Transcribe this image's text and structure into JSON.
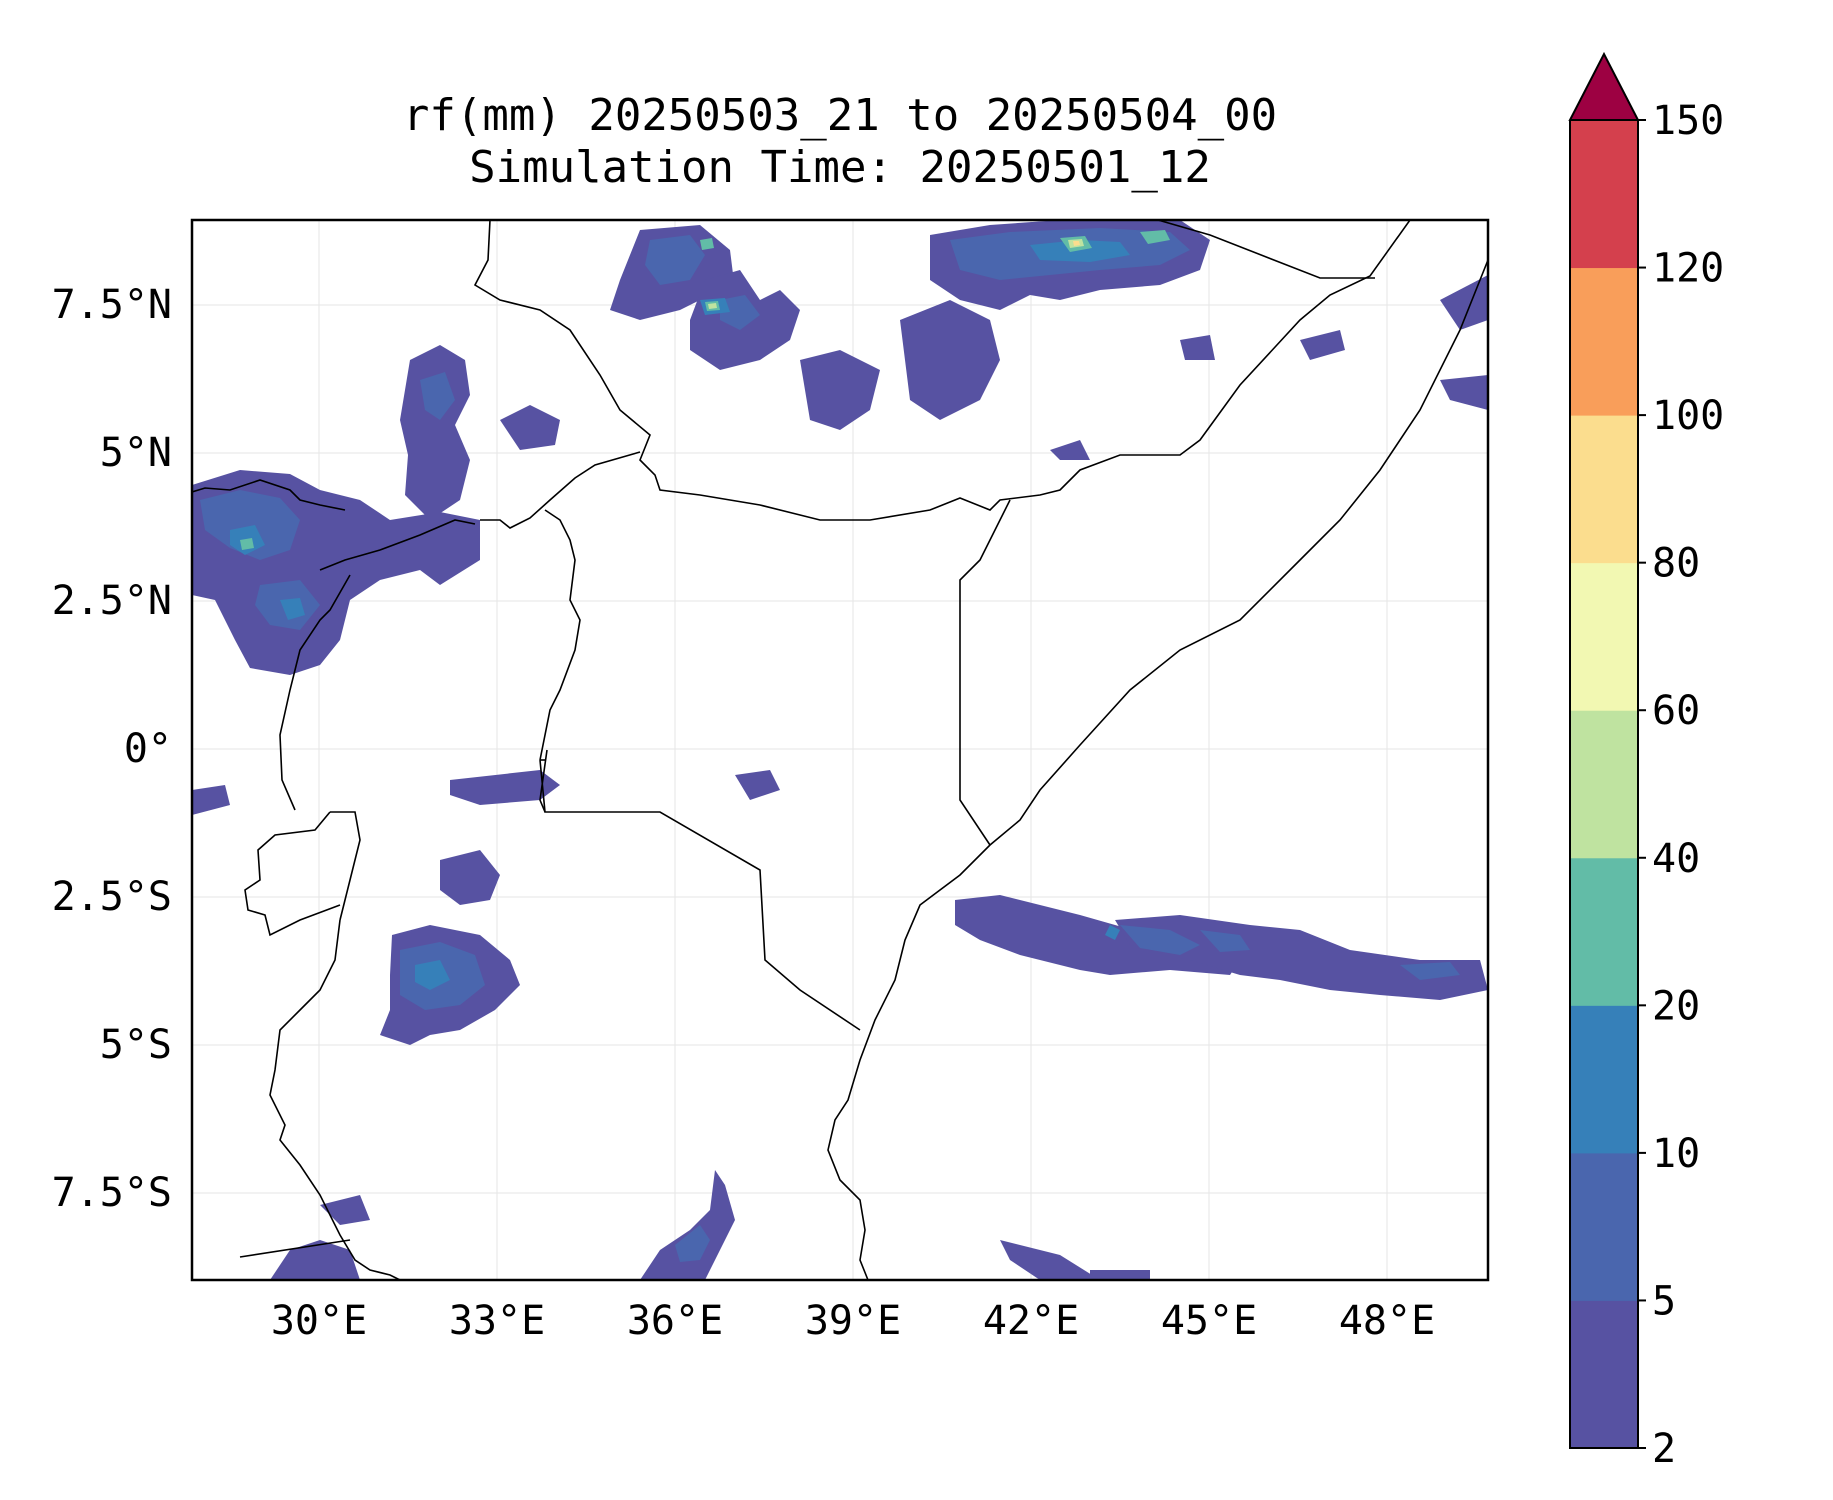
{
  "title": {
    "line1": "rf(mm) 20250503_21 to 20250504_00",
    "line2": "Simulation Time: 20250501_12"
  },
  "map": {
    "x_ticks": [
      "30°E",
      "33°E",
      "36°E",
      "39°E",
      "42°E",
      "45°E",
      "48°E"
    ],
    "y_ticks": [
      "7.5°N",
      "5°N",
      "2.5°N",
      "0°",
      "2.5°S",
      "5°S",
      "7.5°S"
    ],
    "extent": {
      "lon": [
        28,
        50
      ],
      "lat": [
        -8.9,
        9
      ]
    },
    "gridlines": true
  },
  "colorbar": {
    "levels": [
      "2",
      "5",
      "10",
      "20",
      "40",
      "60",
      "80",
      "100",
      "120",
      "150"
    ],
    "colors": [
      "#5752a2",
      "#4a66ae",
      "#3680b9",
      "#62bca7",
      "#bfe3a0",
      "#f2f8b2",
      "#fbdd8e",
      "#f99e5a",
      "#d4404d"
    ],
    "extend_color": "#9d0142",
    "extend": "max"
  }
}
